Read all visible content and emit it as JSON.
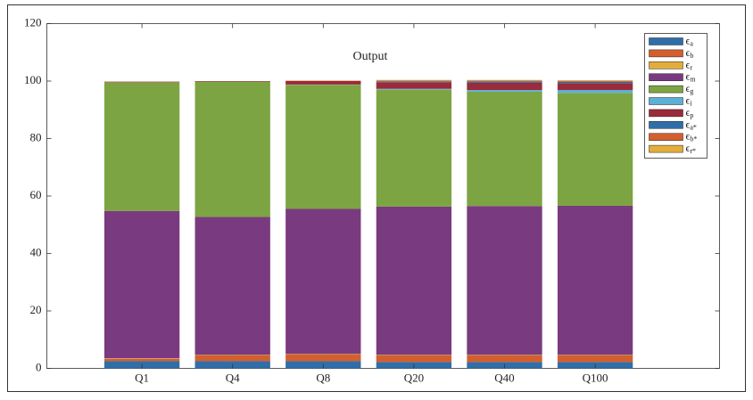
{
  "chart_data": {
    "type": "stacked-bar",
    "title": "Output",
    "categories": [
      "Q1",
      "Q4",
      "Q8",
      "Q20",
      "Q40",
      "Q100"
    ],
    "ylim": [
      0,
      120
    ],
    "yticks": [
      0,
      20,
      40,
      60,
      80,
      100,
      120
    ],
    "legend": "upper-right",
    "series": [
      {
        "name": "ϵa",
        "color": "#2f6ea8",
        "values": [
          2.5,
          2.5,
          2.5,
          2.2,
          2.2,
          2.2
        ]
      },
      {
        "name": "ϵb",
        "color": "#d35f2f",
        "values": [
          0.8,
          2,
          2.3,
          2.3,
          2.3,
          2.3
        ]
      },
      {
        "name": "ϵr",
        "color": "#e3ad3c",
        "values": [
          0.2,
          0.2,
          0.2,
          0.2,
          0.2,
          0.2
        ]
      },
      {
        "name": "ϵm",
        "color": "#7a3a80",
        "values": [
          51.3,
          48,
          50.5,
          51.6,
          51.8,
          51.9
        ]
      },
      {
        "name": "ϵg",
        "color": "#7da442",
        "values": [
          44.8,
          47.1,
          43.2,
          40.7,
          39.8,
          39.3
        ]
      },
      {
        "name": "ϵi",
        "color": "#5cb0d8",
        "values": [
          0,
          0,
          0.1,
          0.3,
          0.6,
          1
        ]
      },
      {
        "name": "ϵp",
        "color": "#9b2a3a",
        "values": [
          0.2,
          0.2,
          1.2,
          2.3,
          2.5,
          2.4
        ]
      },
      {
        "name": "ϵa*",
        "color": "#2f6ea8",
        "values": [
          0,
          0,
          0,
          0.3,
          0.5,
          0.5
        ]
      },
      {
        "name": "ϵb*",
        "color": "#d35f2f",
        "values": [
          0,
          0,
          0.1,
          0.3,
          0.3,
          0.3
        ]
      },
      {
        "name": "ϵr*",
        "color": "#e3ad3c",
        "values": [
          0,
          0,
          0.1,
          0.2,
          0.2,
          0.2
        ]
      }
    ]
  }
}
